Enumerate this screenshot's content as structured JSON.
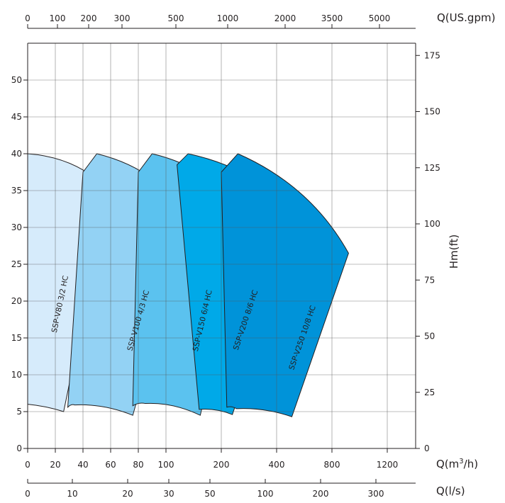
{
  "chart_data": {
    "type": "area",
    "title": "",
    "axes": {
      "top": {
        "label": "Q(US.gpm)",
        "ticks": [
          "0",
          "100",
          "200",
          "300",
          "500",
          "1000",
          "2000",
          "3500",
          "5000"
        ]
      },
      "bottom_m3h": {
        "label_prefix": "Q(m",
        "label_sup": "3",
        "label_suffix": "/h)",
        "ticks": [
          "0",
          "20",
          "40",
          "60",
          "80",
          "100",
          "200",
          "400",
          "800",
          "1200"
        ]
      },
      "bottom_ls": {
        "label": "Q(l/s)",
        "ticks": [
          "0",
          "10",
          "20",
          "30",
          "50",
          "100",
          "200",
          "300"
        ]
      },
      "left": {
        "label": "",
        "ticks": [
          "0",
          "5",
          "10",
          "15",
          "20",
          "25",
          "30",
          "35",
          "40",
          "45",
          "50"
        ],
        "ylim": [
          0,
          55
        ]
      },
      "right": {
        "label": "Hm(ft)",
        "ticks": [
          "0",
          "25",
          "50",
          "75",
          "100",
          "125",
          "150",
          "175"
        ]
      }
    },
    "grid": true,
    "series": [
      {
        "name": "SSP-V80 3/2 HC",
        "color": "#d6ebfb",
        "outline": [
          [
            0,
            40
          ],
          [
            59,
            35
          ],
          [
            26,
            5
          ],
          [
            0,
            6
          ]
        ]
      },
      {
        "name": "SSP-V100 4/3 HC",
        "color": "#93d2f4",
        "outline": [
          [
            40,
            37.5
          ],
          [
            50,
            40
          ],
          [
            140,
            31
          ],
          [
            76,
            4.5
          ],
          [
            34,
            5.9
          ],
          [
            29,
            5.6
          ]
        ]
      },
      {
        "name": "SSP-V150 6/4 HC",
        "color": "#5bc2ef",
        "outline": [
          [
            80,
            37.5
          ],
          [
            90,
            40
          ],
          [
            290,
            31
          ],
          [
            162,
            4.5
          ],
          [
            85,
            6.1
          ],
          [
            76,
            5.8
          ]
        ]
      },
      {
        "name": "SSP-V200 8/6 HC",
        "color": "#00a9e8",
        "outline": [
          [
            120,
            38.5
          ],
          [
            140,
            40
          ],
          [
            550,
            31
          ],
          [
            240,
            4.6
          ],
          [
            160,
            5.3
          ]
        ]
      },
      {
        "name": "SSP-V250 10/8 HC",
        "color": "#0093d9",
        "outline": [
          [
            200,
            37.5
          ],
          [
            260,
            40
          ],
          [
            920,
            26.5
          ],
          [
            510,
            4.3
          ],
          [
            255,
            5.4
          ],
          [
            220,
            5.6
          ]
        ]
      }
    ]
  }
}
